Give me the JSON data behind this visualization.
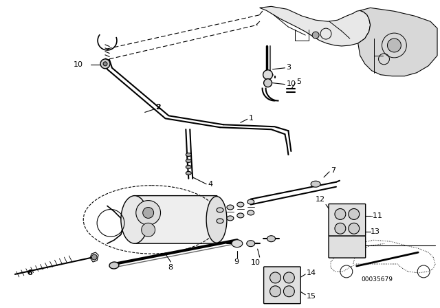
{
  "bg_color": "#ffffff",
  "line_color": "#000000",
  "fig_width": 6.4,
  "fig_height": 4.48,
  "dpi": 100,
  "part_number_text": "00035679"
}
